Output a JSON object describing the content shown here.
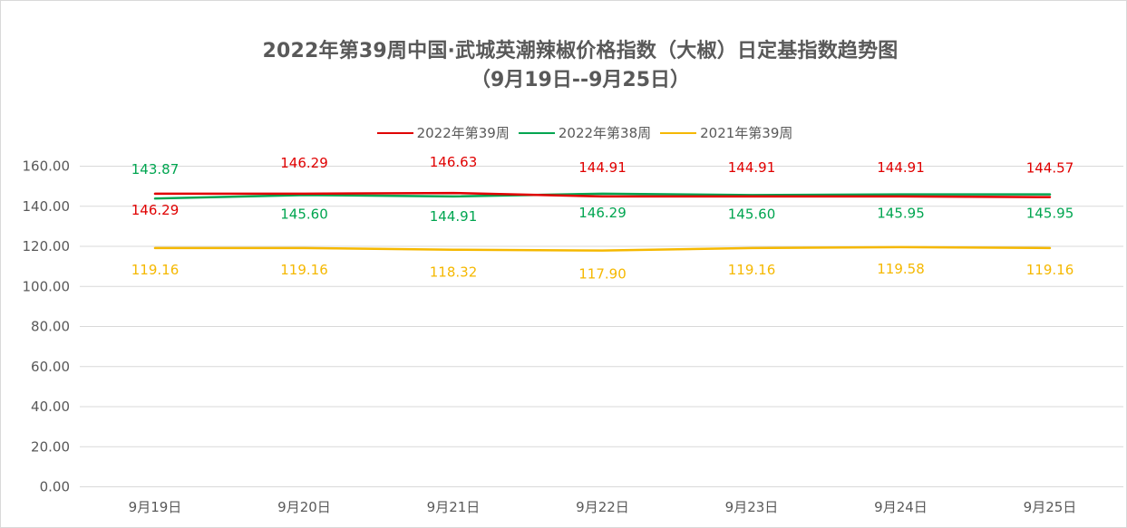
{
  "chart_data": {
    "type": "line",
    "title": "2022年第39周中国·武城英潮辣椒价格指数（大椒）日定基指数趋势图",
    "subtitle": "（9月19日--9月25日）",
    "categories": [
      "9月19日",
      "9月20日",
      "9月21日",
      "9月22日",
      "9月23日",
      "9月24日",
      "9月25日"
    ],
    "y_ticks": [
      "0.00",
      "20.00",
      "40.00",
      "60.00",
      "80.00",
      "100.00",
      "120.00",
      "140.00",
      "160.00"
    ],
    "ylim": [
      0,
      160
    ],
    "grid": true,
    "legend_position": "top",
    "series": [
      {
        "name": "2022年第39周",
        "color": "#e00000",
        "values": [
          146.29,
          146.29,
          146.63,
          144.91,
          144.91,
          144.91,
          144.57
        ],
        "labels": [
          "146.29",
          "146.29",
          "146.63",
          "144.91",
          "144.91",
          "144.91",
          "144.57"
        ]
      },
      {
        "name": "2022年第38周",
        "color": "#00a550",
        "values": [
          143.87,
          145.6,
          144.91,
          146.29,
          145.6,
          145.95,
          145.95
        ],
        "labels": [
          "143.87",
          "145.60",
          "144.91",
          "146.29",
          "145.60",
          "145.95",
          "145.95"
        ]
      },
      {
        "name": "2021年第39周",
        "color": "#f5b800",
        "values": [
          119.16,
          119.16,
          118.32,
          117.9,
          119.16,
          119.58,
          119.16
        ],
        "labels": [
          "119.16",
          "119.16",
          "118.32",
          "117.90",
          "119.16",
          "119.58",
          "119.16"
        ]
      }
    ]
  }
}
